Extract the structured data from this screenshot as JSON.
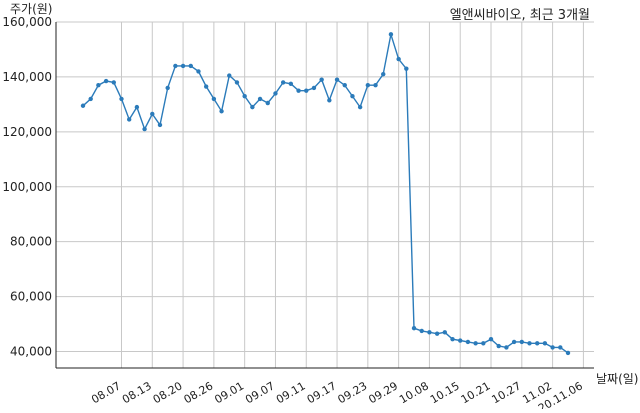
{
  "chart_data": {
    "type": "line",
    "title": "엘앤씨바이오, 최근 3개월",
    "xlabel": "날짜(일)",
    "ylabel": "주가(원)",
    "ylim": [
      34000,
      160000
    ],
    "yticks": [
      40000,
      60000,
      80000,
      100000,
      120000,
      140000,
      160000
    ],
    "ytick_labels": [
      "40,000",
      "60,000",
      "80,000",
      "100,000",
      "120,000",
      "140,000",
      "160,000"
    ],
    "xtick_labels": [
      "08.07",
      "08.13",
      "08.20",
      "08.26",
      "09.01",
      "09.07",
      "09.11",
      "09.17",
      "09.23",
      "09.29",
      "10.08",
      "10.15",
      "10.21",
      "10.27",
      "11.02",
      "20.11.06"
    ],
    "xtick_index": [
      5,
      9,
      13,
      17,
      21,
      25,
      29,
      33,
      37,
      41,
      45,
      49,
      53,
      57,
      61,
      65
    ],
    "grid": true,
    "color": "#2b7bba",
    "series": [
      {
        "values": [
          129500,
          132000,
          137000,
          138500,
          138000,
          132000,
          124500,
          129000,
          121000,
          126500,
          122500,
          136000,
          144000,
          144000,
          144000,
          142000,
          136500,
          132000,
          127500,
          140500,
          138000,
          133000,
          129000,
          132000,
          130500,
          134000,
          138000,
          137500,
          135000,
          135000,
          136000,
          139000,
          131500,
          139000,
          137000,
          133000,
          129000,
          137000,
          137000,
          141000,
          155500,
          146500,
          143000,
          48500,
          47500,
          47000,
          46500,
          47000,
          44500,
          44000,
          43500,
          43000,
          43000,
          44500,
          42000,
          41500,
          43500,
          43500,
          43000,
          43000,
          43000,
          41500,
          41500,
          39500
        ]
      }
    ]
  }
}
